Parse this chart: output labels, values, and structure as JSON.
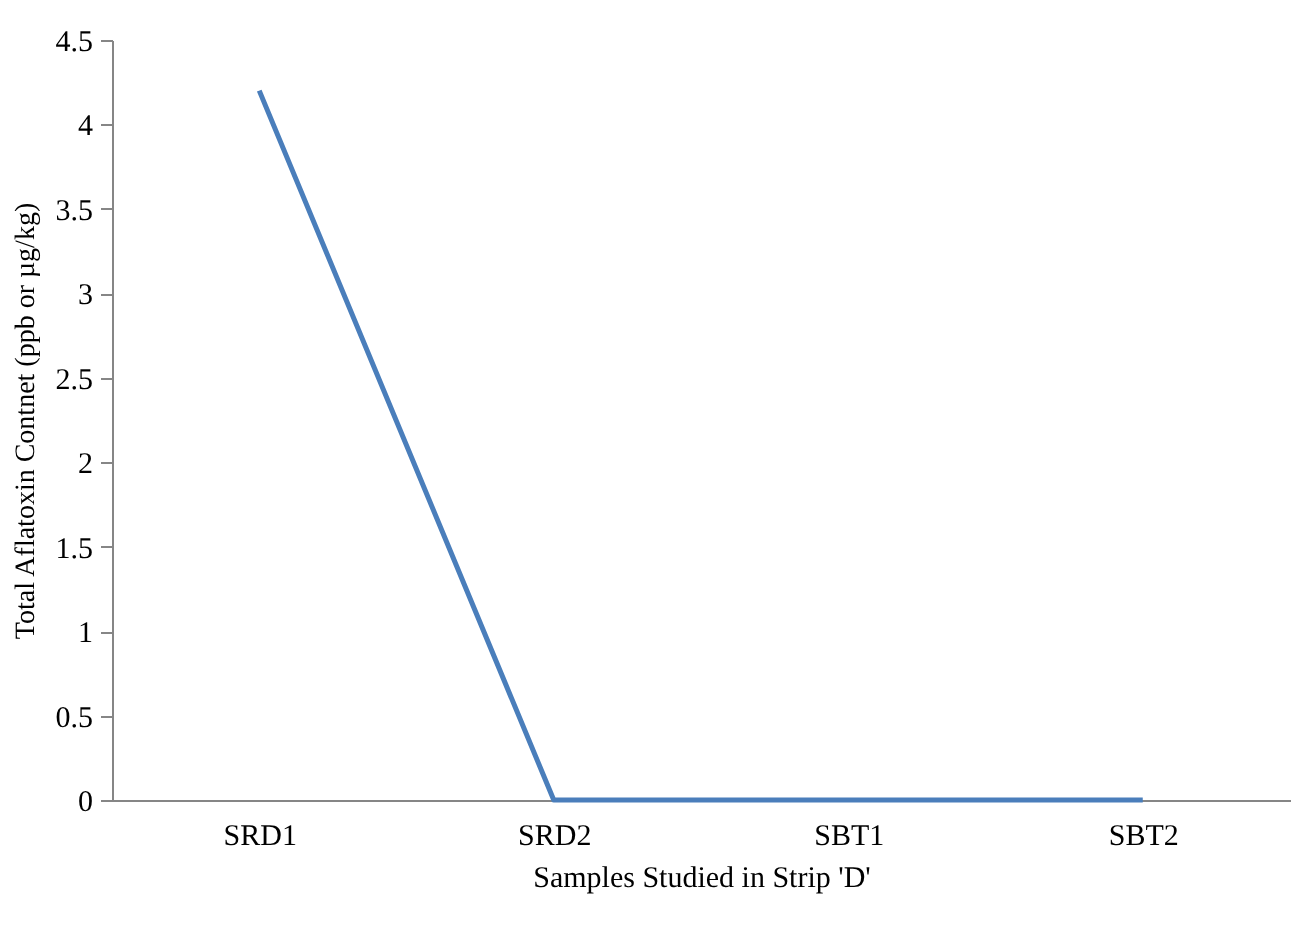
{
  "chart_data": {
    "type": "line",
    "xlabel": "Samples Studied in Strip 'D'",
    "ylabel": "Total Aflatoxin Contnet (ppb or µg/kg)",
    "categories": [
      "SRD1",
      "SRD2",
      "SBT1",
      "SBT2"
    ],
    "series": [
      {
        "color": "#4a7ebb",
        "values": [
          4.2,
          0,
          0,
          0
        ]
      }
    ],
    "ylim": [
      0,
      4.5
    ],
    "yticks": [
      0,
      0.5,
      1,
      1.5,
      2,
      2.5,
      3,
      3.5,
      4,
      4.5
    ],
    "grid": false,
    "marker": "none",
    "line_style": "solid"
  }
}
